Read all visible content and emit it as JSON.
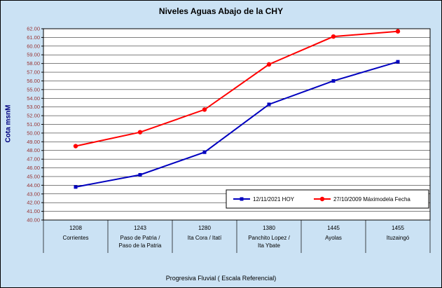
{
  "chart_data": {
    "type": "line",
    "title": "Niveles Aguas Abajo de la CHY",
    "ylabel": "Cota msnM",
    "xlabel": "Progresiva Fluvial ( Escala Referencial)",
    "ylim": [
      40,
      62
    ],
    "ytick_step": 1,
    "grid": true,
    "legend_position": "inside-bottom-right",
    "categories": [
      {
        "km": "1208",
        "name_lines": [
          "Corrientes"
        ]
      },
      {
        "km": "1243",
        "name_lines": [
          "Paso de Patria /",
          "Paso de la Patria"
        ]
      },
      {
        "km": "1280",
        "name_lines": [
          "Ita Cora / Itatí"
        ]
      },
      {
        "km": "1380",
        "name_lines": [
          "Panchito Lopez /",
          "Ita Ybate"
        ]
      },
      {
        "km": "1445",
        "name_lines": [
          "Ayolas"
        ]
      },
      {
        "km": "1455",
        "name_lines": [
          "Ituzaingó"
        ]
      }
    ],
    "series": [
      {
        "name": "12/11/2021 HOY",
        "color": "#0000bf",
        "marker": "square",
        "values": [
          43.8,
          45.2,
          47.8,
          53.3,
          56.0,
          58.2
        ]
      },
      {
        "name": "27/10/2009 Máximodela Fecha",
        "color": "#ff0000",
        "marker": "circle",
        "values": [
          48.5,
          50.1,
          52.7,
          57.9,
          61.1,
          61.7
        ]
      }
    ],
    "colors": {
      "background": "#cbe2f4",
      "plot_bg": "#ffffff",
      "grid": "#000000",
      "ytick_color": "#993333",
      "ylabel_color": "#000080",
      "series_hoy": "#0000bf",
      "series_max": "#ff0000"
    }
  }
}
